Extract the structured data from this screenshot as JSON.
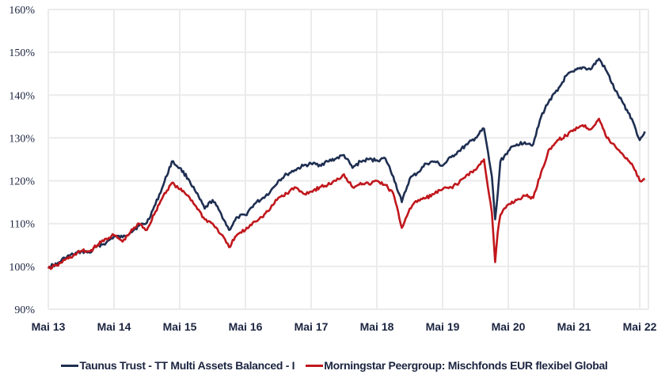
{
  "chart_data": {
    "type": "line",
    "title": "",
    "xlabel": "",
    "ylabel": "",
    "ylim": [
      90,
      160
    ],
    "yticks": [
      "90%",
      "100%",
      "110%",
      "120%",
      "130%",
      "140%",
      "150%",
      "160%"
    ],
    "xticks": [
      "Mai 13",
      "Mai 14",
      "Mai 15",
      "Mai 16",
      "Mai 17",
      "Mai 18",
      "Mai 19",
      "Mai 20",
      "Mai 21",
      "Mai 22"
    ],
    "grid": true,
    "legend_position": "bottom",
    "x": [
      2013.37,
      2013.5,
      2013.62,
      2013.75,
      2013.87,
      2014.0,
      2014.12,
      2014.25,
      2014.37,
      2014.5,
      2014.62,
      2014.75,
      2014.87,
      2015.0,
      2015.12,
      2015.25,
      2015.37,
      2015.5,
      2015.62,
      2015.75,
      2015.87,
      2016.0,
      2016.12,
      2016.25,
      2016.37,
      2016.5,
      2016.62,
      2016.75,
      2016.87,
      2017.0,
      2017.12,
      2017.25,
      2017.37,
      2017.5,
      2017.62,
      2017.75,
      2017.87,
      2018.0,
      2018.12,
      2018.25,
      2018.37,
      2018.5,
      2018.62,
      2018.75,
      2018.87,
      2019.0,
      2019.12,
      2019.25,
      2019.37,
      2019.5,
      2019.62,
      2019.75,
      2019.87,
      2020.0,
      2020.12,
      2020.17,
      2020.21,
      2020.25,
      2020.37,
      2020.5,
      2020.62,
      2020.75,
      2020.87,
      2021.0,
      2021.12,
      2021.25,
      2021.37,
      2021.5,
      2021.62,
      2021.75,
      2021.87,
      2022.0,
      2022.12,
      2022.25,
      2022.37,
      2022.45
    ],
    "series": [
      {
        "name": "Taunus Trust - TT Multi Assets Balanced - I",
        "color": "#1f2f52",
        "values": [
          100,
          100.5,
          102,
          102.8,
          103.5,
          103.2,
          104.8,
          105.5,
          107,
          106.8,
          108,
          109.5,
          110.2,
          114.5,
          119,
          124.5,
          123,
          120.5,
          117.2,
          113.5,
          115.5,
          112.3,
          108.5,
          111.5,
          112,
          114.5,
          115.8,
          117.5,
          120,
          121.5,
          122.5,
          123.5,
          124,
          123.7,
          124.5,
          125.2,
          126,
          123,
          124.5,
          125,
          124.8,
          125.2,
          121,
          115,
          120.5,
          122,
          124,
          124.5,
          123.5,
          125.5,
          127,
          128.5,
          130,
          132.2,
          121,
          111,
          117,
          124.5,
          127,
          128.5,
          129,
          128.5,
          135,
          139,
          141,
          144.5,
          145.5,
          146.5,
          146,
          148.5,
          145.5,
          141,
          138,
          134.5,
          129.5,
          131.5
        ]
      },
      {
        "name": "Morningstar Peergroup: Mischfonds EUR flexibel Global",
        "color": "#c0171c",
        "values": [
          99.5,
          100.2,
          101.5,
          102.5,
          103.6,
          103.5,
          105,
          106.5,
          107.3,
          105.8,
          108,
          110,
          108.5,
          112.8,
          116.5,
          119.5,
          118,
          116.5,
          114,
          111,
          110,
          107.5,
          104.5,
          107.5,
          108.5,
          110.5,
          111.5,
          113.5,
          116,
          117,
          118.5,
          117,
          117.5,
          118.5,
          119,
          120,
          121.5,
          118.5,
          119.5,
          119.2,
          120,
          119,
          117,
          109,
          113.5,
          115.5,
          116,
          117,
          118,
          118.5,
          119.5,
          121.5,
          122.5,
          125,
          112.5,
          101,
          108,
          112,
          114.5,
          115.5,
          116.5,
          116,
          122,
          127.5,
          129.5,
          130.5,
          132,
          133,
          132,
          134.5,
          130,
          128,
          126,
          124,
          120,
          120.5
        ]
      }
    ]
  },
  "legend": {
    "items": [
      {
        "label": "Taunus Trust - TT Multi Assets Balanced - I",
        "color": "#1f2f52"
      },
      {
        "label": "Morningstar Peergroup: Mischfonds EUR flexibel Global",
        "color": "#c0171c"
      }
    ]
  }
}
